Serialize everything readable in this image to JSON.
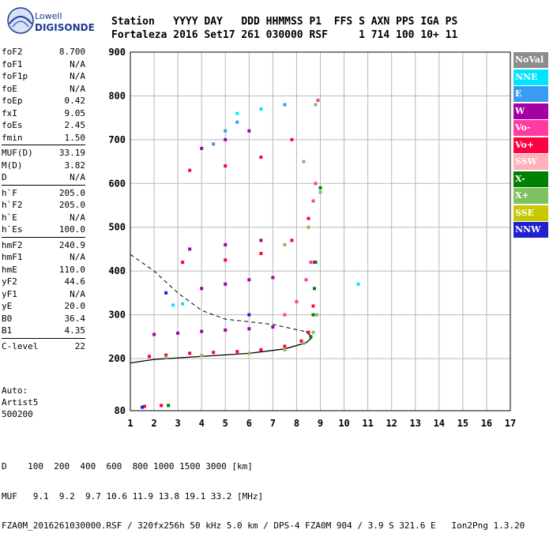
{
  "logo": {
    "line1": "Lowell",
    "line2": "DIGISONDE"
  },
  "header": {
    "line1": "Station   YYYY DAY   DDD HHMMSS P1  FFS S AXN PPS IGA PS",
    "line2": "Fortaleza 2016 Set17 261 030000 RSF     1 714 100 10+ 11"
  },
  "params_group1": [
    {
      "k": "foF2",
      "v": "8.700"
    },
    {
      "k": "foF1",
      "v": "N/A"
    },
    {
      "k": "foF1p",
      "v": "N/A"
    },
    {
      "k": "foE",
      "v": "N/A"
    },
    {
      "k": "foEp",
      "v": "0.42"
    },
    {
      "k": "fxI",
      "v": "9.05"
    },
    {
      "k": "foEs",
      "v": "2.45"
    },
    {
      "k": "fmin",
      "v": "1.50"
    }
  ],
  "params_group2": [
    {
      "k": "MUF(D)",
      "v": "33.19"
    },
    {
      "k": "M(D)",
      "v": "3.82"
    },
    {
      "k": "D",
      "v": "N/A"
    }
  ],
  "params_group3": [
    {
      "k": "h`F",
      "v": "205.0"
    },
    {
      "k": "h`F2",
      "v": "205.0"
    },
    {
      "k": "h`E",
      "v": "N/A"
    },
    {
      "k": "h`Es",
      "v": "100.0"
    }
  ],
  "params_group4": [
    {
      "k": "hmF2",
      "v": "240.9"
    },
    {
      "k": "hmF1",
      "v": "N/A"
    },
    {
      "k": "hmE",
      "v": "110.0"
    },
    {
      "k": "yF2",
      "v": "44.6"
    },
    {
      "k": "yF1",
      "v": "N/A"
    },
    {
      "k": "yE",
      "v": "20.0"
    },
    {
      "k": "B0",
      "v": "36.4"
    },
    {
      "k": "B1",
      "v": "4.35"
    }
  ],
  "params_group5": [
    {
      "k": "C-level",
      "v": "22"
    }
  ],
  "auto": {
    "line1": "Auto:",
    "line2": "Artist5",
    "line3": "500200"
  },
  "legend": [
    {
      "label": "NoVal",
      "color": "#8c8c8c"
    },
    {
      "label": "NNE",
      "color": "#00e5ff"
    },
    {
      "label": "E",
      "color": "#3a9cf0"
    },
    {
      "label": "W",
      "color": "#a400a4"
    },
    {
      "label": "Vo-",
      "color": "#ff3aa0"
    },
    {
      "label": "Vo+",
      "color": "#ff0040"
    },
    {
      "label": "SSW",
      "color": "#ffb0b8"
    },
    {
      "label": "X-",
      "color": "#008000"
    },
    {
      "label": "X+",
      "color": "#7fc060"
    },
    {
      "label": "SSE",
      "color": "#c8c800"
    },
    {
      "label": "NNW",
      "color": "#2020d0"
    }
  ],
  "bottom": {
    "line1": "D    100  200  400  600  800 1000 1500 3000 [km]",
    "line2": "MUF   9.1  9.2  9.7 10.6 11.9 13.8 19.1 33.2 [MHz]",
    "line3": "FZA0M_2016261030000.RSF / 320fx256h 50 kHz 5.0 km / DPS-4 FZA0M 904 / 3.9 S 321.6 E   Ion2Png 1.3.20"
  },
  "chart_data": {
    "type": "scatter",
    "x_ticks": [
      1,
      2,
      3,
      4,
      5,
      6,
      7,
      8,
      9,
      10,
      11,
      12,
      13,
      14,
      15,
      16,
      17
    ],
    "y_ticks": [
      80,
      200,
      300,
      400,
      500,
      600,
      700,
      800,
      900
    ],
    "xlim": [
      1,
      17
    ],
    "ylim": [
      80,
      900
    ],
    "grid": true,
    "series": [
      {
        "name": "Vo+",
        "color": "#ff0040",
        "points": [
          [
            1.8,
            205
          ],
          [
            2.5,
            208
          ],
          [
            3.5,
            212
          ],
          [
            4.5,
            214
          ],
          [
            5.5,
            216
          ],
          [
            6.5,
            220
          ],
          [
            7.5,
            228
          ],
          [
            8.2,
            240
          ],
          [
            8.5,
            260
          ],
          [
            8.7,
            320
          ],
          [
            8.75,
            420
          ],
          [
            3.5,
            630
          ],
          [
            5,
            640
          ],
          [
            6.5,
            660
          ],
          [
            7.8,
            700
          ],
          [
            3.2,
            420
          ],
          [
            5,
            425
          ],
          [
            6.5,
            440
          ],
          [
            7.8,
            470
          ],
          [
            8.5,
            520
          ],
          [
            1.6,
            90
          ],
          [
            2.3,
            92
          ]
        ]
      },
      {
        "name": "X+",
        "color": "#7fc060",
        "points": [
          [
            2.5,
            203
          ],
          [
            4,
            207
          ],
          [
            6,
            212
          ],
          [
            7.5,
            220
          ],
          [
            8.3,
            235
          ],
          [
            8.7,
            260
          ],
          [
            8.85,
            300
          ],
          [
            7.5,
            460
          ],
          [
            8.5,
            500
          ],
          [
            9,
            580
          ],
          [
            8.3,
            650
          ],
          [
            8.8,
            780
          ]
        ]
      },
      {
        "name": "X-",
        "color": "#008000",
        "points": [
          [
            8.6,
            250
          ],
          [
            8.7,
            300
          ],
          [
            8.75,
            360
          ],
          [
            8.8,
            420
          ],
          [
            9,
            590
          ],
          [
            2.6,
            92
          ]
        ]
      },
      {
        "name": "W",
        "color": "#a400a4",
        "points": [
          [
            2,
            255
          ],
          [
            3,
            258
          ],
          [
            4,
            262
          ],
          [
            5,
            265
          ],
          [
            6,
            268
          ],
          [
            7,
            272
          ],
          [
            4,
            360
          ],
          [
            5,
            370
          ],
          [
            6,
            380
          ],
          [
            7,
            385
          ],
          [
            3.5,
            450
          ],
          [
            5,
            460
          ],
          [
            6.5,
            470
          ],
          [
            4,
            680
          ],
          [
            5,
            700
          ],
          [
            6,
            720
          ]
        ]
      },
      {
        "name": "Vo-",
        "color": "#ff3aa0",
        "points": [
          [
            7.5,
            300
          ],
          [
            8,
            330
          ],
          [
            8.4,
            380
          ],
          [
            8.6,
            420
          ],
          [
            8.7,
            560
          ],
          [
            8.8,
            600
          ],
          [
            8.9,
            790
          ]
        ]
      },
      {
        "name": "NNE",
        "color": "#00e5ff",
        "points": [
          [
            2.8,
            322
          ],
          [
            3.2,
            325
          ],
          [
            10.6,
            370
          ],
          [
            5.5,
            760
          ],
          [
            6.5,
            770
          ]
        ]
      },
      {
        "name": "E",
        "color": "#3a9cf0",
        "points": [
          [
            4.5,
            690
          ],
          [
            5,
            720
          ],
          [
            5.5,
            740
          ],
          [
            7.5,
            780
          ]
        ]
      },
      {
        "name": "NNW",
        "color": "#2020d0",
        "points": [
          [
            2.5,
            350
          ],
          [
            6,
            300
          ],
          [
            1.5,
            88
          ]
        ]
      }
    ]
  }
}
